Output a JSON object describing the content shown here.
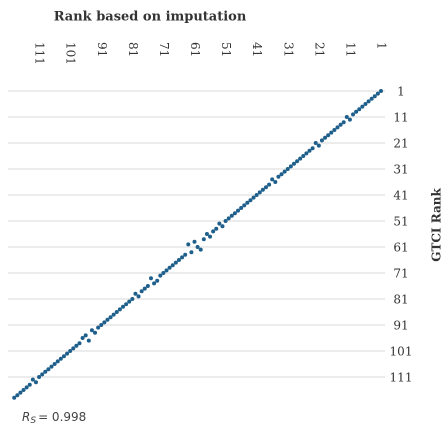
{
  "chart_data": {
    "type": "scatter",
    "title": "Rank based on imputation",
    "y_label": "GTCI Rank",
    "annotation": {
      "symbol": "R",
      "subscript": "S",
      "text": "= 0.998"
    },
    "x_reversed": true,
    "y_reversed": true,
    "xlim": [
      1,
      121
    ],
    "ylim": [
      1,
      121
    ],
    "xticks": [
      1,
      11,
      21,
      31,
      41,
      51,
      61,
      71,
      81,
      91,
      101,
      111
    ],
    "yticks": [
      1,
      11,
      21,
      31,
      41,
      51,
      61,
      71,
      81,
      91,
      101,
      111
    ],
    "grid": true,
    "color": "#1f5f8b",
    "x": [
      1,
      2,
      3,
      4,
      5,
      6,
      7,
      8,
      9,
      10,
      11,
      12,
      13,
      14,
      15,
      16,
      17,
      18,
      19,
      20,
      21,
      22,
      23,
      24,
      25,
      26,
      27,
      28,
      29,
      30,
      31,
      32,
      33,
      34,
      35,
      36,
      37,
      38,
      39,
      40,
      41,
      42,
      43,
      44,
      45,
      46,
      47,
      48,
      49,
      50,
      51,
      52,
      53,
      54,
      55,
      56,
      57,
      58,
      59,
      60,
      61,
      62,
      63,
      64,
      65,
      66,
      67,
      68,
      69,
      70,
      71,
      72,
      73,
      74,
      75,
      76,
      77,
      78,
      79,
      80,
      81,
      82,
      83,
      84,
      85,
      86,
      87,
      88,
      89,
      90,
      91,
      92,
      93,
      94,
      95,
      96,
      97,
      98,
      99,
      100,
      101,
      102,
      103,
      104,
      105,
      106,
      107,
      108,
      109,
      110,
      111,
      112,
      113,
      114,
      115,
      116,
      117,
      118,
      119
    ],
    "values": [
      1,
      2,
      3,
      4,
      5,
      6,
      7,
      8,
      9,
      10,
      12,
      11,
      13,
      14,
      15,
      16,
      17,
      18,
      19,
      20,
      22,
      21,
      23,
      24,
      25,
      26,
      27,
      28,
      29,
      30,
      31,
      32,
      33,
      34,
      36,
      35,
      37,
      38,
      39,
      40,
      41,
      42,
      43,
      44,
      45,
      46,
      47,
      48,
      49,
      50,
      51,
      53,
      52,
      54,
      55,
      57,
      56,
      58,
      62,
      61,
      59,
      63,
      60,
      64,
      65,
      66,
      67,
      68,
      69,
      70,
      71,
      72,
      74,
      75,
      73,
      76,
      77,
      78,
      80,
      79,
      81,
      82,
      83,
      84,
      85,
      86,
      87,
      88,
      89,
      90,
      91,
      92,
      94,
      93,
      97,
      95,
      96,
      98,
      99,
      100,
      101,
      102,
      103,
      104,
      105,
      106,
      107,
      108,
      109,
      110,
      111,
      113,
      112,
      114,
      115,
      116,
      117,
      118,
      119
    ]
  }
}
